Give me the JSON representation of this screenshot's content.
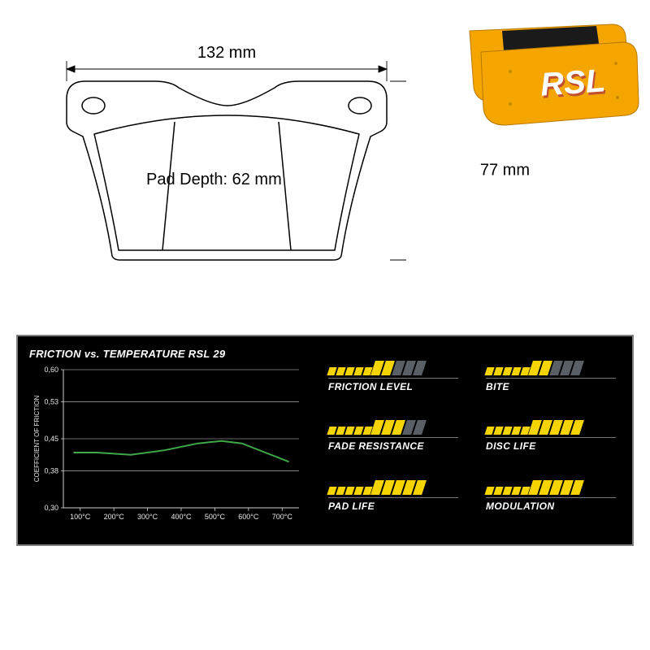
{
  "diagram": {
    "width_label": "132 mm",
    "height_label": "77 mm",
    "depth_label": "Pad Depth: 62 mm",
    "outline_stroke": "#000000",
    "outline_width": 1.5,
    "dim_stroke": "#000000",
    "font_size": 20
  },
  "product": {
    "body_color": "#f5a500",
    "logo_text": "RSL",
    "logo_color": "#ffffff",
    "logo_shadow": "#c05030",
    "friction_color": "#1a1a1a"
  },
  "chart": {
    "title": "FRICTION vs. TEMPERATURE RSL 29",
    "ylabel": "COEFFICIENT OF FRICTION",
    "xlabel_suffix": "°C",
    "x_ticks": [
      100,
      200,
      300,
      400,
      500,
      600,
      700
    ],
    "y_ticks": [
      0.3,
      0.38,
      0.45,
      0.53,
      0.6
    ],
    "y_tick_labels": [
      "0,30",
      "0,38",
      "0,45",
      "0,53",
      "0,60"
    ],
    "xlim": [
      50,
      750
    ],
    "ylim": [
      0.3,
      0.6
    ],
    "line_color": "#3fa848",
    "line_width": 2,
    "grid_color": "#d0d0d0",
    "axis_color": "#d0d0d0",
    "tick_font_size": 9,
    "tick_color": "#e8e8e8",
    "series": [
      {
        "x": 80,
        "y": 0.42
      },
      {
        "x": 150,
        "y": 0.42
      },
      {
        "x": 250,
        "y": 0.415
      },
      {
        "x": 350,
        "y": 0.425
      },
      {
        "x": 450,
        "y": 0.44
      },
      {
        "x": 520,
        "y": 0.445
      },
      {
        "x": 580,
        "y": 0.44
      },
      {
        "x": 650,
        "y": 0.42
      },
      {
        "x": 720,
        "y": 0.4
      }
    ]
  },
  "ratings": {
    "filled_color": "#f5d400",
    "empty_color": "#5a5f66",
    "bar_count": 10,
    "small_bars": 5,
    "small_w": 9,
    "small_h": 10,
    "big_w": 11,
    "big_h": 18,
    "items": [
      {
        "label": "FRICTION LEVEL",
        "value": 7
      },
      {
        "label": "BITE",
        "value": 7
      },
      {
        "label": "FADE RESISTANCE",
        "value": 8
      },
      {
        "label": "DISC LIFE",
        "value": 10
      },
      {
        "label": "PAD LIFE",
        "value": 10
      },
      {
        "label": "MODULATION",
        "value": 10
      }
    ]
  }
}
